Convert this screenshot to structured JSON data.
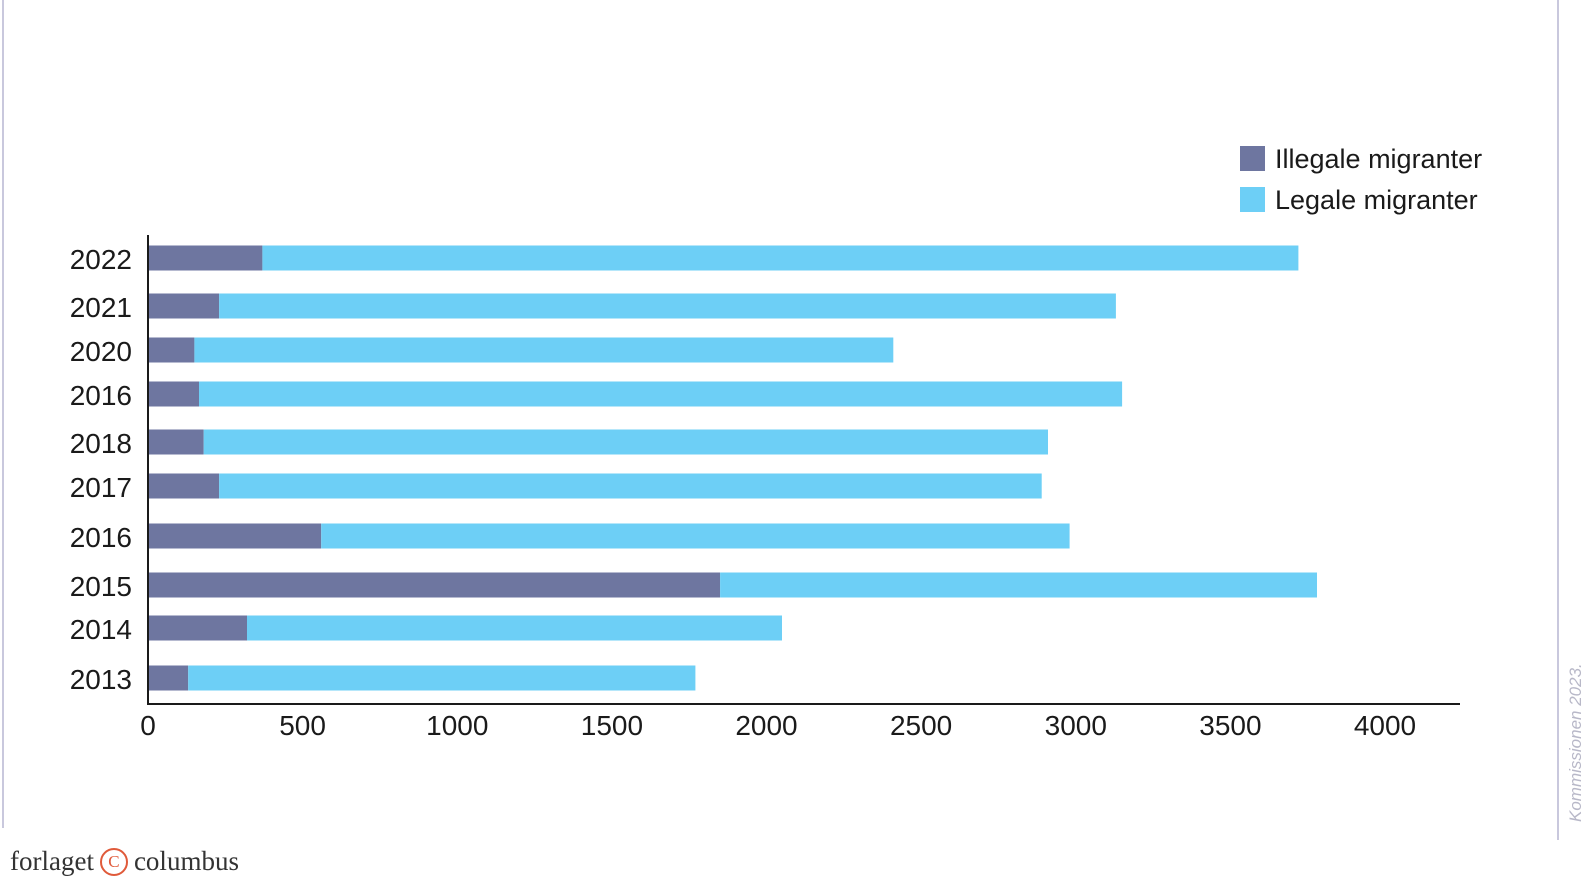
{
  "chart_data": {
    "type": "bar",
    "orientation": "horizontal",
    "stacked": true,
    "title": "",
    "xlabel": "",
    "ylabel": "",
    "categories": [
      "2022",
      "2021",
      "2020",
      "2016",
      "2018",
      "2017",
      "2016",
      "2015",
      "2014",
      "2013"
    ],
    "series": [
      {
        "name": "Illegale migranter",
        "color": "#6e76a0",
        "values": [
          370,
          230,
          150,
          165,
          180,
          230,
          560,
          1850,
          320,
          130
        ]
      },
      {
        "name": "Legale migranter",
        "color": "#6dcff6",
        "values": [
          3350,
          2900,
          2260,
          2985,
          2730,
          2660,
          2420,
          1930,
          1730,
          1640
        ]
      }
    ],
    "xlim": [
      0,
      4200
    ],
    "xticks": [
      "0",
      "500",
      "1000",
      "1500",
      "2000",
      "2500",
      "3000",
      "3500",
      "4000"
    ],
    "grid": false,
    "legend": {
      "position": "top-right",
      "entries": [
        "Illegale migranter",
        "Legale migranter"
      ]
    }
  },
  "footer": {
    "brand_left": "forlaget",
    "brand_mark": "C",
    "brand_right": "columbus"
  },
  "source_note": "Kommissionen 2023."
}
